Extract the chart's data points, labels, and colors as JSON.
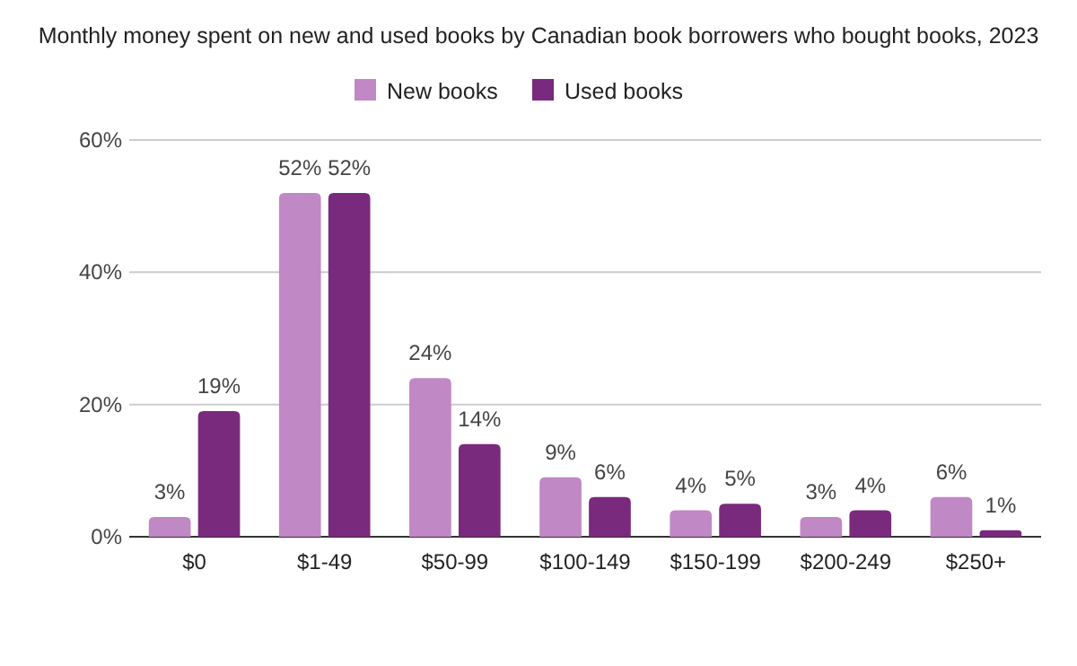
{
  "chart_data": {
    "type": "bar",
    "title": "Monthly money spent on new and used books by Canadian book borrowers who bought books, 2023",
    "categories": [
      "$0",
      "$1-49",
      "$50-99",
      "$100-149",
      "$150-199",
      "$200-249",
      "$250+"
    ],
    "series": [
      {
        "name": "New books",
        "color": "#c088c4",
        "values": [
          3,
          52,
          24,
          9,
          4,
          3,
          6
        ],
        "value_labels": [
          "3%",
          "52%",
          "24%",
          "9%",
          "4%",
          "3%",
          "6%"
        ]
      },
      {
        "name": "Used books",
        "color": "#7a2a7c",
        "values": [
          19,
          52,
          14,
          6,
          5,
          4,
          1
        ],
        "value_labels": [
          "19%",
          "52%",
          "14%",
          "6%",
          "5%",
          "4%",
          "1%"
        ]
      }
    ],
    "ylim": [
      0,
      60
    ],
    "yticks": [
      {
        "value": 0,
        "label": "0%"
      },
      {
        "value": 20,
        "label": "20%"
      },
      {
        "value": 40,
        "label": "40%"
      },
      {
        "value": 60,
        "label": "60%"
      }
    ],
    "grid": "y",
    "legend": "top"
  }
}
